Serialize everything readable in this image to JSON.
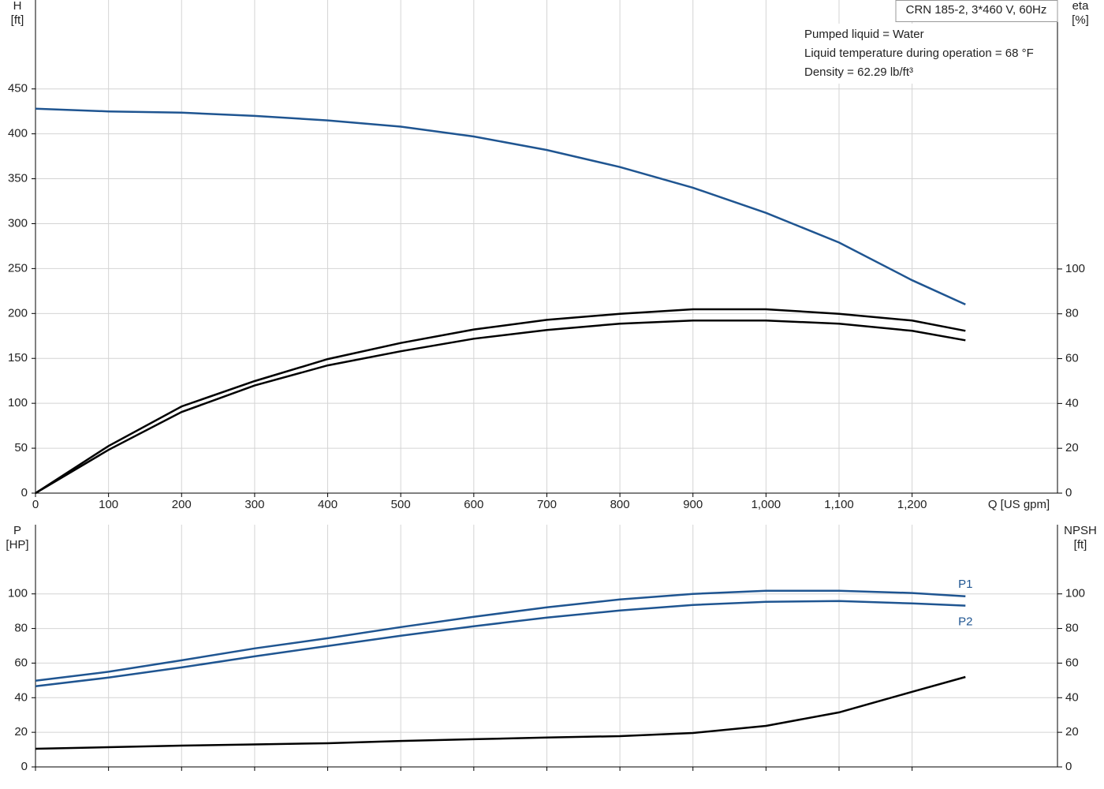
{
  "chart_data": [
    {
      "type": "line",
      "title": "CRN 185-2, 3*460 V, 60Hz",
      "annotations": [
        "Pumped liquid = Water",
        "Liquid temperature during operation = 68 °F",
        "Density = 62.29 lb/ft³"
      ],
      "ylabel": "H",
      "yunit": "[ft]",
      "y2label": "eta",
      "y2unit": "[%]",
      "xlabel": "Q [US gpm]",
      "x": [
        0,
        100,
        200,
        300,
        400,
        500,
        600,
        700,
        800,
        900,
        1000,
        1100,
        1200,
        1273
      ],
      "xlim": [
        0,
        1399
      ],
      "xticks": [
        0,
        100,
        200,
        300,
        400,
        500,
        600,
        700,
        800,
        900,
        {
          "value": 1000,
          "label": "1,000"
        },
        {
          "value": 1100,
          "label": "1,100"
        },
        {
          "value": 1200,
          "label": "1,200"
        }
      ],
      "ylim": [
        0,
        549
      ],
      "yticks": [
        0,
        50,
        100,
        150,
        200,
        250,
        300,
        350,
        400,
        450
      ],
      "y2lim": [
        0,
        220
      ],
      "y2ticks": [
        0,
        20,
        40,
        60,
        80,
        100
      ],
      "grid": true,
      "series": [
        {
          "color": "#1f5591",
          "values": [
            428,
            425,
            423.6,
            420,
            415,
            408,
            397,
            382,
            363,
            340,
            312,
            279,
            237,
            210
          ]
        },
        {
          "color": "#000000",
          "axis": "y2",
          "values": [
            0,
            21,
            38.7,
            50,
            59.8,
            67,
            73,
            77.3,
            80,
            82,
            82,
            80,
            77,
            72.4
          ]
        },
        {
          "color": "#000000",
          "axis": "y2",
          "values": [
            0,
            19.3,
            36.2,
            48,
            57,
            63.3,
            68.9,
            72.8,
            75.6,
            77,
            77,
            75.6,
            72.4,
            68.2
          ]
        }
      ]
    },
    {
      "type": "line",
      "ylabel": "P",
      "yunit": "[HP]",
      "y2label": "NPSH",
      "y2unit": "[ft]",
      "x": [
        0,
        100,
        200,
        300,
        400,
        500,
        600,
        700,
        800,
        900,
        1000,
        1100,
        1200,
        1273
      ],
      "xlim": [
        0,
        1399
      ],
      "xticks": [
        0,
        100,
        200,
        300,
        400,
        500,
        600,
        700,
        800,
        900,
        1000,
        1100,
        1200
      ],
      "show_xtick_labels": false,
      "ylim": [
        0,
        140
      ],
      "yticks": [
        0,
        20,
        40,
        60,
        80,
        100
      ],
      "y2lim": [
        0,
        140
      ],
      "y2ticks": [
        0,
        20,
        40,
        60,
        80,
        100
      ],
      "grid": true,
      "series": [
        {
          "name": "P1",
          "color": "#1f5591",
          "values": [
            49.8,
            55,
            61.6,
            68.5,
            74.4,
            80.8,
            86.8,
            92.2,
            96.8,
            100,
            101.8,
            101.8,
            100.5,
            98.6
          ]
        },
        {
          "name": "P2",
          "color": "#1f5591",
          "values": [
            46.6,
            51.6,
            57.5,
            63.9,
            69.9,
            75.8,
            81.3,
            86.3,
            90.4,
            93.6,
            95.4,
            95.9,
            94.5,
            93.2
          ]
        },
        {
          "color": "#000000",
          "axis": "y2",
          "values": [
            10.5,
            11.4,
            12.3,
            13,
            13.7,
            15,
            16,
            17,
            17.8,
            19.6,
            23.7,
            31.5,
            43.4,
            52
          ]
        }
      ]
    }
  ]
}
